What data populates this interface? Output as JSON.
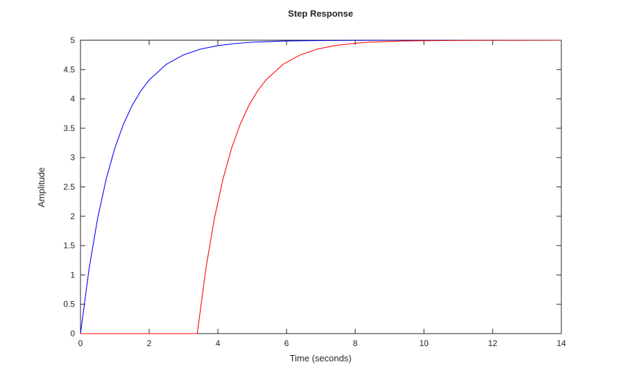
{
  "chart_data": {
    "type": "line",
    "title": "Step Response",
    "xlabel": "Time (seconds)",
    "ylabel": "Amplitude",
    "xlim": [
      0,
      14
    ],
    "ylim": [
      0,
      5
    ],
    "xticks": [
      0,
      2,
      4,
      6,
      8,
      10,
      12,
      14
    ],
    "xtick_labels": [
      "0",
      "2",
      "4",
      "6",
      "8",
      "10",
      "12",
      "14"
    ],
    "yticks": [
      0,
      0.5,
      1,
      1.5,
      2,
      2.5,
      3,
      3.5,
      4,
      4.5,
      5
    ],
    "ytick_labels": [
      "0",
      "0.5",
      "1",
      "1.5",
      "2",
      "2.5",
      "3",
      "3.5",
      "4",
      "4.5",
      "5"
    ],
    "grid": false,
    "steady_state_line": {
      "y": 5,
      "style": "dotted",
      "color": "#000000"
    },
    "series": [
      {
        "color": "#0000ff",
        "x": [
          0,
          0.25,
          0.5,
          0.75,
          1,
          1.25,
          1.5,
          1.75,
          2,
          2.5,
          3,
          3.5,
          4,
          4.5,
          5,
          6,
          7,
          8,
          10,
          14
        ],
        "y": [
          0,
          1.106,
          1.967,
          2.638,
          3.161,
          3.567,
          3.884,
          4.131,
          4.323,
          4.59,
          4.751,
          4.849,
          4.908,
          4.944,
          4.966,
          4.988,
          4.995,
          4.998,
          5.0,
          5.0
        ]
      },
      {
        "color": "#ff0000",
        "x": [
          0,
          3.4,
          3.65,
          3.9,
          4.15,
          4.4,
          4.65,
          4.9,
          5.15,
          5.4,
          5.9,
          6.4,
          6.9,
          7.4,
          7.9,
          8.4,
          9.4,
          10.4,
          11.4,
          14
        ],
        "y": [
          0,
          0,
          1.106,
          1.967,
          2.638,
          3.161,
          3.567,
          3.884,
          4.131,
          4.323,
          4.59,
          4.751,
          4.849,
          4.908,
          4.944,
          4.966,
          4.988,
          4.995,
          4.998,
          5.0
        ]
      }
    ]
  }
}
